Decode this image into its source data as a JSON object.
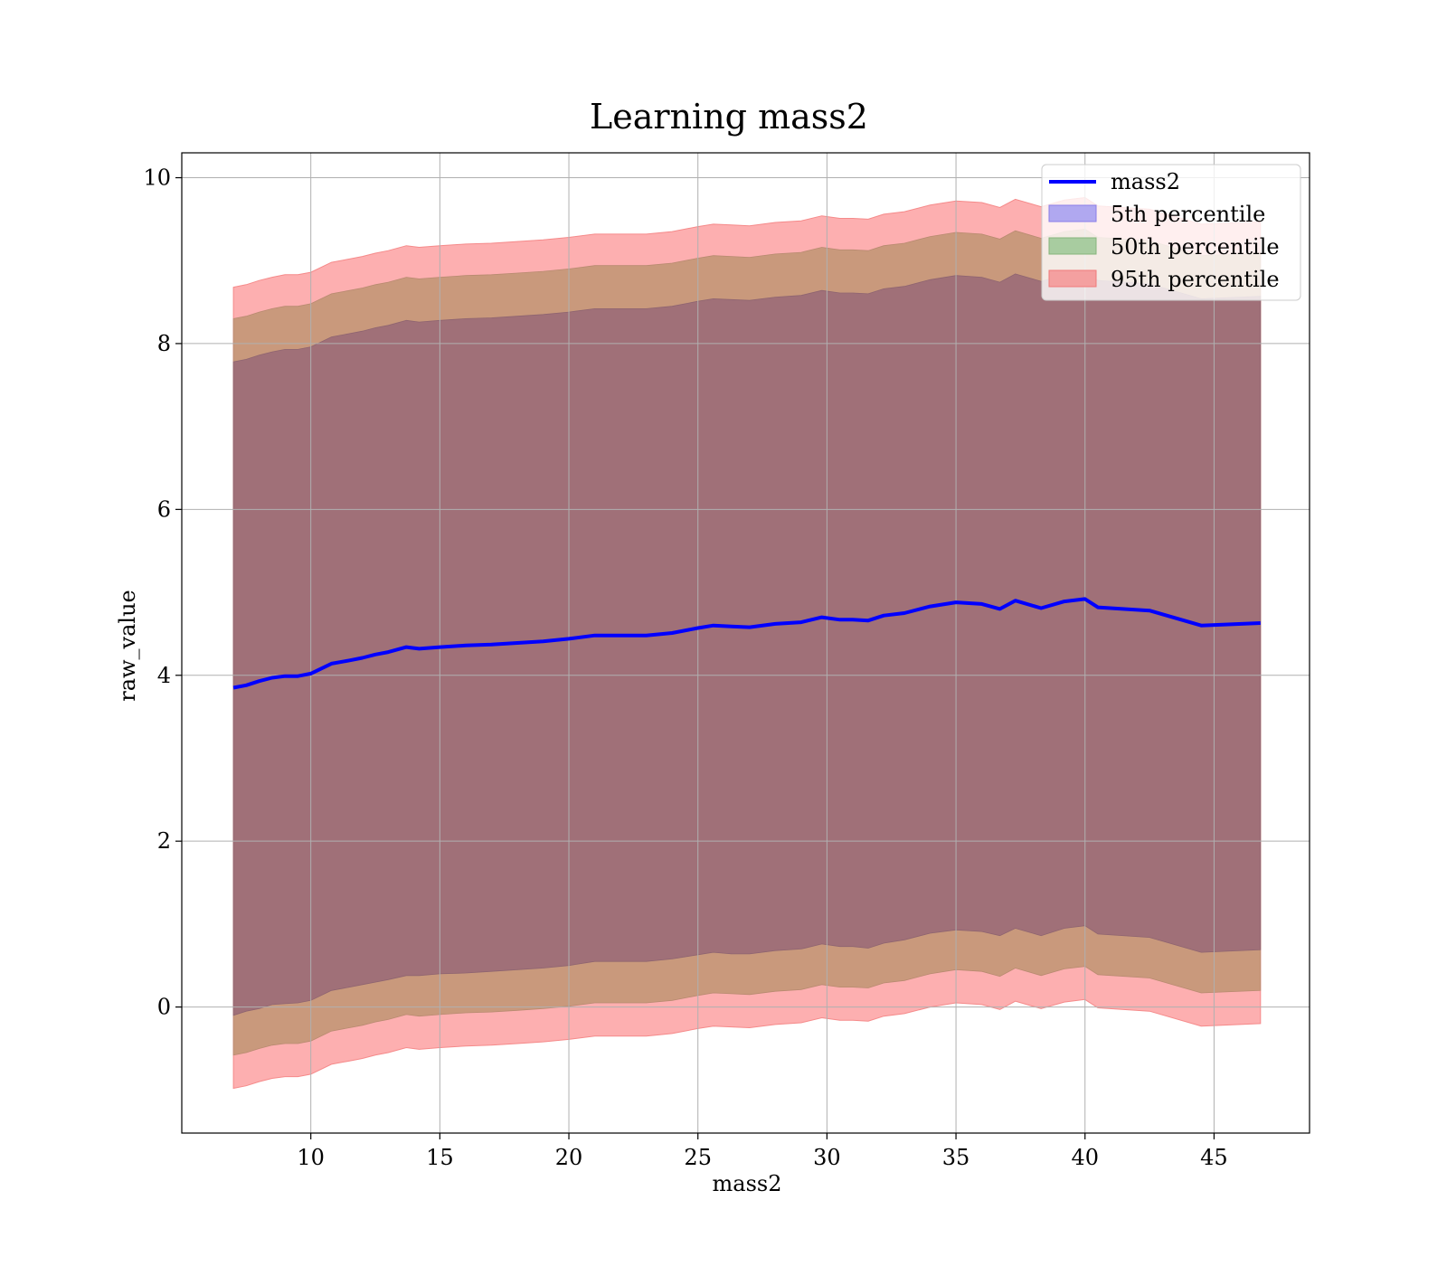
{
  "chart_data": {
    "type": "area",
    "title": "Learning mass2",
    "xlabel": "mass2",
    "ylabel": "raw_value",
    "xlim": [
      5.0,
      48.7
    ],
    "ylim": [
      -1.52,
      10.3
    ],
    "xticks": [
      10,
      15,
      20,
      25,
      30,
      35,
      40,
      45
    ],
    "yticks": [
      0,
      2,
      4,
      6,
      8,
      10
    ],
    "grid": true,
    "legend_position": "top-right",
    "x": [
      7.0,
      7.5,
      8.0,
      8.5,
      9.0,
      9.5,
      10.0,
      10.8,
      11.5,
      12.0,
      12.5,
      13.0,
      13.7,
      14.2,
      15.0,
      16.0,
      17.0,
      18.0,
      19.0,
      20.0,
      21.0,
      22.0,
      23.0,
      24.0,
      25.0,
      25.6,
      26.3,
      27.0,
      28.0,
      29.0,
      29.8,
      30.5,
      31.0,
      31.6,
      32.2,
      33.0,
      34.0,
      35.0,
      36.0,
      36.7,
      37.3,
      38.3,
      39.2,
      40.0,
      40.5,
      42.5,
      44.5,
      46.8
    ],
    "series": [
      {
        "name": "mass2",
        "values": [
          3.85,
          3.88,
          3.93,
          3.97,
          3.99,
          3.99,
          4.02,
          4.14,
          4.18,
          4.21,
          4.25,
          4.28,
          4.34,
          4.32,
          4.34,
          4.36,
          4.37,
          4.39,
          4.41,
          4.44,
          4.48,
          4.48,
          4.48,
          4.51,
          4.57,
          4.6,
          4.59,
          4.58,
          4.62,
          4.64,
          4.7,
          4.67,
          4.67,
          4.66,
          4.72,
          4.75,
          4.83,
          4.88,
          4.86,
          4.8,
          4.9,
          4.81,
          4.89,
          4.92,
          4.82,
          4.78,
          4.6,
          4.63
        ]
      },
      {
        "name": "5th percentile",
        "lower": [
          -0.1,
          -0.05,
          -0.02,
          0.03,
          0.04,
          0.05,
          0.08,
          0.2,
          0.24,
          0.27,
          0.3,
          0.33,
          0.38,
          0.38,
          0.4,
          0.41,
          0.43,
          0.45,
          0.47,
          0.5,
          0.55,
          0.55,
          0.55,
          0.58,
          0.63,
          0.66,
          0.64,
          0.64,
          0.68,
          0.7,
          0.76,
          0.73,
          0.73,
          0.71,
          0.77,
          0.81,
          0.89,
          0.93,
          0.91,
          0.86,
          0.95,
          0.86,
          0.95,
          0.98,
          0.88,
          0.84,
          0.66,
          0.69
        ],
        "upper": [
          7.78,
          7.81,
          7.86,
          7.9,
          7.93,
          7.93,
          7.96,
          8.08,
          8.12,
          8.15,
          8.19,
          8.22,
          8.28,
          8.26,
          8.28,
          8.3,
          8.31,
          8.33,
          8.35,
          8.38,
          8.42,
          8.42,
          8.42,
          8.45,
          8.51,
          8.54,
          8.53,
          8.52,
          8.56,
          8.58,
          8.64,
          8.61,
          8.61,
          8.6,
          8.66,
          8.69,
          8.77,
          8.82,
          8.8,
          8.74,
          8.84,
          8.75,
          8.83,
          8.86,
          8.76,
          8.72,
          8.54,
          8.57
        ]
      },
      {
        "name": "50th percentile",
        "lower": [
          -0.58,
          -0.55,
          -0.5,
          -0.46,
          -0.44,
          -0.44,
          -0.41,
          -0.29,
          -0.25,
          -0.22,
          -0.18,
          -0.15,
          -0.09,
          -0.11,
          -0.09,
          -0.07,
          -0.06,
          -0.04,
          -0.02,
          0.01,
          0.05,
          0.05,
          0.05,
          0.08,
          0.14,
          0.17,
          0.16,
          0.15,
          0.19,
          0.21,
          0.27,
          0.24,
          0.24,
          0.23,
          0.29,
          0.32,
          0.4,
          0.45,
          0.43,
          0.37,
          0.47,
          0.38,
          0.46,
          0.49,
          0.39,
          0.35,
          0.17,
          0.2
        ],
        "upper": [
          8.3,
          8.33,
          8.38,
          8.42,
          8.45,
          8.45,
          8.48,
          8.6,
          8.64,
          8.67,
          8.71,
          8.74,
          8.8,
          8.78,
          8.8,
          8.82,
          8.83,
          8.85,
          8.87,
          8.9,
          8.94,
          8.94,
          8.94,
          8.97,
          9.03,
          9.06,
          9.05,
          9.04,
          9.08,
          9.1,
          9.16,
          9.13,
          9.13,
          9.12,
          9.18,
          9.21,
          9.29,
          9.34,
          9.32,
          9.26,
          9.36,
          9.27,
          9.35,
          9.38,
          9.28,
          9.24,
          9.06,
          9.09
        ]
      },
      {
        "name": "95th percentile",
        "lower": [
          -0.98,
          -0.95,
          -0.9,
          -0.86,
          -0.84,
          -0.84,
          -0.81,
          -0.69,
          -0.65,
          -0.62,
          -0.58,
          -0.55,
          -0.49,
          -0.51,
          -0.49,
          -0.47,
          -0.46,
          -0.44,
          -0.42,
          -0.39,
          -0.35,
          -0.35,
          -0.35,
          -0.32,
          -0.26,
          -0.23,
          -0.24,
          -0.25,
          -0.21,
          -0.19,
          -0.13,
          -0.16,
          -0.16,
          -0.17,
          -0.11,
          -0.08,
          0.0,
          0.05,
          0.03,
          -0.03,
          0.07,
          -0.02,
          0.06,
          0.09,
          -0.01,
          -0.05,
          -0.23,
          -0.2
        ],
        "upper": [
          8.68,
          8.71,
          8.76,
          8.8,
          8.83,
          8.83,
          8.86,
          8.98,
          9.02,
          9.05,
          9.09,
          9.12,
          9.18,
          9.16,
          9.18,
          9.2,
          9.21,
          9.23,
          9.25,
          9.28,
          9.32,
          9.32,
          9.32,
          9.35,
          9.41,
          9.44,
          9.43,
          9.42,
          9.46,
          9.48,
          9.54,
          9.51,
          9.51,
          9.5,
          9.56,
          9.59,
          9.67,
          9.72,
          9.7,
          9.64,
          9.74,
          9.65,
          9.73,
          9.76,
          9.66,
          9.62,
          9.44,
          9.47
        ]
      }
    ],
    "colors": {
      "line": "#0000ff",
      "band_5": "#6a5acd",
      "band_50": "#d2a27a",
      "band_95": "#ff6f6f",
      "core": "#a07078",
      "grid": "#b0b0b0"
    }
  },
  "legend": {
    "items": [
      {
        "label": "mass2",
        "kind": "line",
        "color": "#0000ff"
      },
      {
        "label": "5th percentile",
        "kind": "patch",
        "color": "#b0a8f0",
        "edge": "#8a7ee8"
      },
      {
        "label": "50th percentile",
        "kind": "patch",
        "color": "#a8cca0",
        "edge": "#86b47c"
      },
      {
        "label": "95th percentile",
        "kind": "patch",
        "color": "#f4a0a0",
        "edge": "#f07a7a"
      }
    ]
  }
}
